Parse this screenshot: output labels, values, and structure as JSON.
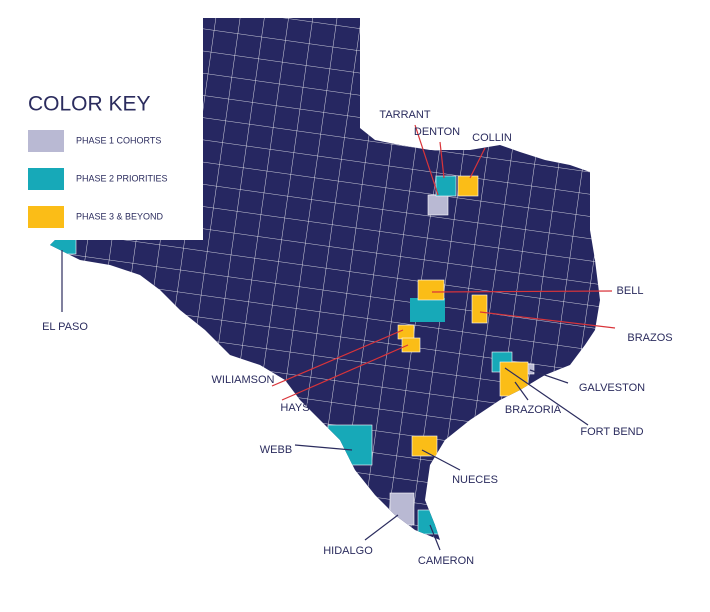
{
  "legend": {
    "title": "COLOR KEY",
    "items": [
      {
        "label": "PHASE 1 COHORTS",
        "color": "#b9b9d3",
        "counties": [
          "TARRANT",
          "GALVESTON",
          "HIDALGO"
        ]
      },
      {
        "label": "PHASE 2 PRIORITIES",
        "color": "#17a9b8",
        "counties": [
          "DENTON",
          "EL PASO",
          "FORT BEND",
          "WEBB",
          "CAMERON"
        ]
      },
      {
        "label": "PHASE 3 & BEYOND",
        "color": "#fbbd17",
        "counties": [
          "COLLIN",
          "BELL",
          "BRAZOS",
          "WILIAMSON",
          "HAYS",
          "BRAZORIA",
          "NUECES"
        ]
      }
    ]
  }
}
